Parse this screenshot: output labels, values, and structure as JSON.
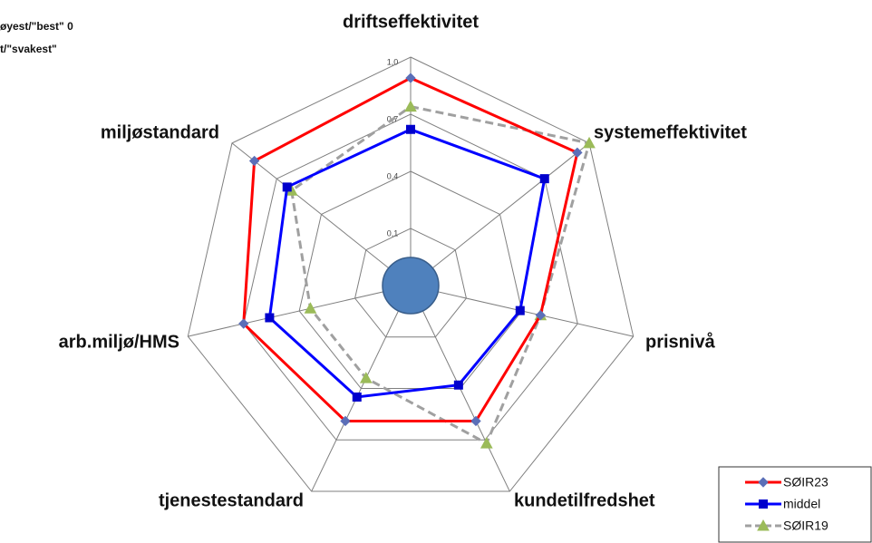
{
  "chart_data": {
    "type": "radar",
    "annotations": [
      "øyest/\"best\"  0",
      "t/\"svakest\""
    ],
    "categories": [
      "driftseffektivitet",
      "systemeffektivitet",
      "prisnivå",
      "kundetilfredshet",
      "tjenestestandard",
      "arb.miljø/HMS",
      "miljøstandard"
    ],
    "series": [
      {
        "name": "SØIR23",
        "color": "#ff0000",
        "marker_color": "#5b6fb8",
        "marker": "diamond",
        "dashed": false,
        "values": [
          0.89,
          0.92,
          0.5,
          0.59,
          0.59,
          0.7,
          0.85
        ]
      },
      {
        "name": "middel",
        "color": "#0000ff",
        "marker_color": "#0000cc",
        "marker": "square",
        "dashed": false,
        "values": [
          0.62,
          0.7,
          0.39,
          0.38,
          0.45,
          0.56,
          0.63
        ]
      },
      {
        "name": "SØIR19",
        "color": "#a0a0a0",
        "marker_color": "#9bbb59",
        "marker": "triangle",
        "dashed": true,
        "values": [
          0.74,
          1.0,
          0.5,
          0.72,
          0.34,
          0.34,
          0.6
        ]
      }
    ],
    "ylim": [
      -0.2,
      1.0
    ],
    "yticks": [
      {
        "value": 0.1,
        "label": "0,1"
      },
      {
        "value": 0.4,
        "label": "0,4"
      },
      {
        "value": 0.7,
        "label": "0,7"
      },
      {
        "value": 1.0,
        "label": "1,0"
      }
    ],
    "grid": true,
    "legend": "lower right"
  }
}
